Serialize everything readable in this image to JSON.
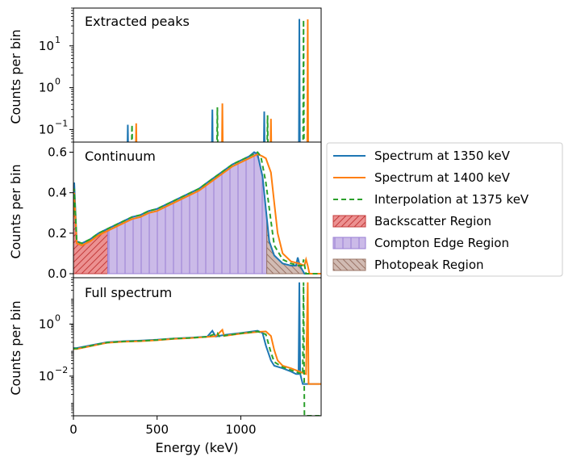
{
  "chart_data": [
    {
      "panel": "top",
      "type": "line",
      "title": "Extracted peaks",
      "ylabel": "Counts per bin",
      "yscale": "log",
      "ylim": [
        0.05,
        80
      ],
      "xlim": [
        0,
        1480
      ],
      "y_ticks": [
        {
          "value": 10,
          "base": "10",
          "exp": "1"
        },
        {
          "value": 1,
          "base": "10",
          "exp": "0"
        },
        {
          "value": 0.1,
          "base": "10",
          "exp": "−1"
        }
      ],
      "series": [
        {
          "name": "Spectrum at 1350 keV",
          "color": "#1f77b4",
          "dash": false,
          "peaks": [
            [
              325,
              0.13
            ],
            [
              830,
              0.3
            ],
            [
              1140,
              0.27
            ],
            [
              1350,
              44
            ]
          ]
        },
        {
          "name": "Spectrum at 1400 keV",
          "color": "#ff7f0e",
          "dash": false,
          "peaks": [
            [
              375,
              0.14
            ],
            [
              890,
              0.42
            ],
            [
              1180,
              0.18
            ],
            [
              1400,
              43
            ]
          ]
        },
        {
          "name": "Interpolation at 1375 keV",
          "color": "#2ca02c",
          "dash": true,
          "peaks": [
            [
              350,
              0.13
            ],
            [
              860,
              0.34
            ],
            [
              1160,
              0.22
            ],
            [
              1375,
              42
            ]
          ]
        }
      ]
    },
    {
      "panel": "middle",
      "type": "area",
      "title": "Continuum",
      "ylabel": "Counts per bin",
      "yscale": "linear",
      "ylim": [
        -0.02,
        0.65
      ],
      "xlim": [
        0,
        1480
      ],
      "y_ticks": [
        0.0,
        0.2,
        0.4,
        0.6
      ],
      "series": [
        {
          "name": "Spectrum at 1350 keV",
          "color": "#1f77b4",
          "dash": false,
          "x": [
            0,
            5,
            20,
            50,
            100,
            150,
            200,
            250,
            300,
            350,
            400,
            450,
            500,
            550,
            600,
            650,
            700,
            750,
            800,
            850,
            900,
            950,
            1000,
            1050,
            1080,
            1100,
            1130,
            1150,
            1170,
            1200,
            1250,
            1300,
            1330,
            1340,
            1350,
            1360,
            1380,
            1480
          ],
          "y": [
            0.3,
            0.45,
            0.16,
            0.15,
            0.17,
            0.2,
            0.22,
            0.24,
            0.26,
            0.28,
            0.29,
            0.31,
            0.32,
            0.34,
            0.36,
            0.38,
            0.4,
            0.42,
            0.45,
            0.48,
            0.51,
            0.54,
            0.56,
            0.58,
            0.6,
            0.59,
            0.48,
            0.32,
            0.16,
            0.09,
            0.05,
            0.04,
            0.04,
            0.08,
            0.05,
            0.03,
            0.0,
            0.0
          ]
        },
        {
          "name": "Spectrum at 1400 keV",
          "color": "#ff7f0e",
          "dash": false,
          "x": [
            0,
            5,
            20,
            50,
            100,
            150,
            200,
            250,
            300,
            350,
            400,
            450,
            500,
            550,
            600,
            650,
            700,
            750,
            800,
            850,
            900,
            950,
            1000,
            1050,
            1100,
            1130,
            1150,
            1180,
            1200,
            1220,
            1250,
            1300,
            1350,
            1380,
            1390,
            1400,
            1410,
            1480
          ],
          "y": [
            0.28,
            0.4,
            0.15,
            0.14,
            0.16,
            0.19,
            0.21,
            0.23,
            0.25,
            0.27,
            0.28,
            0.3,
            0.31,
            0.33,
            0.35,
            0.37,
            0.39,
            0.41,
            0.44,
            0.47,
            0.5,
            0.53,
            0.55,
            0.57,
            0.59,
            0.58,
            0.57,
            0.5,
            0.35,
            0.2,
            0.1,
            0.06,
            0.05,
            0.04,
            0.07,
            0.04,
            0.0,
            0.0
          ]
        },
        {
          "name": "Interpolation at 1375 keV",
          "color": "#2ca02c",
          "dash": true,
          "x": [
            0,
            5,
            20,
            50,
            100,
            150,
            200,
            250,
            300,
            350,
            400,
            450,
            500,
            550,
            600,
            650,
            700,
            750,
            800,
            850,
            900,
            950,
            1000,
            1050,
            1100,
            1120,
            1150,
            1180,
            1200,
            1250,
            1300,
            1350,
            1370,
            1375,
            1390,
            1480
          ],
          "y": [
            0.29,
            0.42,
            0.16,
            0.15,
            0.17,
            0.2,
            0.22,
            0.24,
            0.26,
            0.28,
            0.29,
            0.31,
            0.32,
            0.34,
            0.36,
            0.38,
            0.4,
            0.42,
            0.45,
            0.48,
            0.51,
            0.54,
            0.56,
            0.58,
            0.6,
            0.58,
            0.45,
            0.26,
            0.14,
            0.07,
            0.05,
            0.04,
            0.04,
            0.07,
            0.0,
            0.0
          ]
        }
      ],
      "regions": [
        {
          "name": "Backscatter Region",
          "x_range": [
            0,
            205
          ],
          "fill": "#e66c6c",
          "edge": "#c43c3c",
          "hatch": "diagonal"
        },
        {
          "name": "Compton Edge Region",
          "x_range": [
            205,
            1155
          ],
          "fill": "#b9a3e0",
          "edge": "#9a7fd4",
          "hatch": "vertical"
        },
        {
          "name": "Photopeak Region",
          "x_range": [
            1155,
            1480
          ],
          "fill": "#c2a49a",
          "edge": "#9a7466",
          "hatch": "diagonal-back"
        }
      ]
    },
    {
      "panel": "bottom",
      "type": "line",
      "title": "Full spectrum",
      "ylabel": "Counts per bin",
      "xlabel": "Energy (keV)",
      "yscale": "log",
      "ylim": [
        0.0003,
        60
      ],
      "xlim": [
        0,
        1480
      ],
      "x_ticks": [
        0,
        500,
        1000
      ],
      "y_ticks": [
        {
          "value": 1,
          "base": "10",
          "exp": "0"
        },
        {
          "value": 0.01,
          "base": "10",
          "exp": "−2"
        }
      ],
      "series": [
        {
          "name": "Spectrum at 1350 keV",
          "color": "#1f77b4",
          "dash": false,
          "x": [
            0,
            20,
            100,
            200,
            300,
            400,
            500,
            600,
            700,
            800,
            830,
            850,
            900,
            1000,
            1100,
            1130,
            1150,
            1180,
            1200,
            1250,
            1300,
            1330,
            1345,
            1350,
            1355,
            1370,
            1480
          ],
          "y": [
            0.12,
            0.12,
            0.15,
            0.2,
            0.22,
            0.23,
            0.25,
            0.28,
            0.3,
            0.33,
            0.55,
            0.33,
            0.38,
            0.45,
            0.55,
            0.45,
            0.15,
            0.04,
            0.025,
            0.02,
            0.015,
            0.012,
            0.012,
            40,
            0.012,
            0.005,
            0.005
          ]
        },
        {
          "name": "Spectrum at 1400 keV",
          "color": "#ff7f0e",
          "dash": false,
          "x": [
            0,
            20,
            100,
            200,
            300,
            400,
            500,
            600,
            700,
            800,
            850,
            890,
            900,
            1000,
            1100,
            1150,
            1180,
            1200,
            1220,
            1250,
            1300,
            1350,
            1390,
            1400,
            1405,
            1420,
            1480
          ],
          "y": [
            0.11,
            0.11,
            0.14,
            0.19,
            0.21,
            0.22,
            0.24,
            0.27,
            0.29,
            0.32,
            0.34,
            0.6,
            0.35,
            0.43,
            0.5,
            0.52,
            0.35,
            0.1,
            0.04,
            0.025,
            0.02,
            0.015,
            0.012,
            40,
            0.005,
            0.005,
            0.005
          ]
        },
        {
          "name": "Interpolation at 1375 keV",
          "color": "#2ca02c",
          "dash": true,
          "x": [
            0,
            20,
            100,
            200,
            300,
            400,
            500,
            600,
            700,
            800,
            860,
            870,
            900,
            1000,
            1100,
            1150,
            1180,
            1200,
            1250,
            1300,
            1350,
            1370,
            1375,
            1380,
            1480
          ],
          "y": [
            0.115,
            0.115,
            0.145,
            0.195,
            0.215,
            0.225,
            0.245,
            0.275,
            0.295,
            0.325,
            0.45,
            0.34,
            0.36,
            0.44,
            0.52,
            0.4,
            0.08,
            0.035,
            0.022,
            0.017,
            0.013,
            0.012,
            40,
            0.0003,
            0.0003
          ]
        }
      ]
    }
  ],
  "legend": {
    "position": "right",
    "entries": [
      {
        "label": "Spectrum at 1350 keV",
        "kind": "line",
        "color": "#1f77b4",
        "dash": false
      },
      {
        "label": "Spectrum at 1400 keV",
        "kind": "line",
        "color": "#ff7f0e",
        "dash": false
      },
      {
        "label": "Interpolation at 1375 keV",
        "kind": "line",
        "color": "#2ca02c",
        "dash": true
      },
      {
        "label": "Backscatter Region",
        "kind": "patch",
        "fill": "#e66c6c",
        "edge": "#c43c3c",
        "hatch": "diagonal"
      },
      {
        "label": "Compton Edge Region",
        "kind": "patch",
        "fill": "#b9a3e0",
        "edge": "#9a7fd4",
        "hatch": "vertical"
      },
      {
        "label": "Photopeak Region",
        "kind": "patch",
        "fill": "#c2a49a",
        "edge": "#9a7466",
        "hatch": "diagonal-back"
      }
    ]
  }
}
